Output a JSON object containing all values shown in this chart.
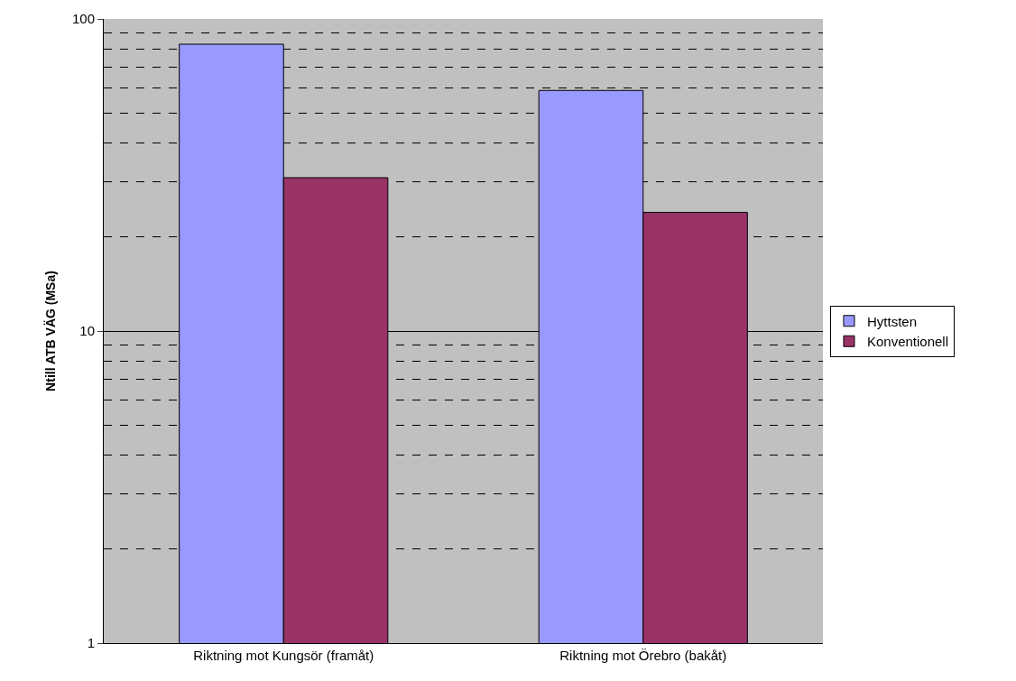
{
  "chart_data": {
    "type": "bar",
    "ylabel": "Ntill ATB VÄG (MSa)",
    "categories": [
      "Riktning mot Kungsör (framåt)",
      "Riktning mot Örebro (bakåt)"
    ],
    "series": [
      {
        "name": "Hyttsten",
        "color": "#9999ff",
        "values": [
          83,
          59
        ]
      },
      {
        "name": "Konventionell",
        "color": "#993366",
        "values": [
          31,
          24
        ]
      }
    ],
    "log": "y",
    "ylim": [
      1,
      100
    ],
    "yticks": [
      1,
      10,
      100
    ],
    "grid": "y",
    "legend": "right"
  }
}
